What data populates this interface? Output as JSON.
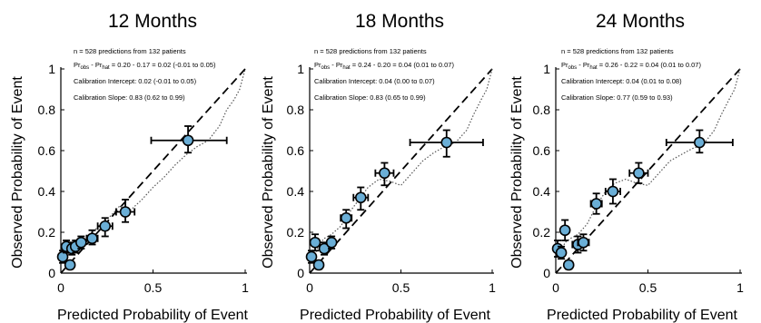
{
  "chart_data": [
    {
      "type": "scatter",
      "title": "12 Months",
      "xlabel": "Predicted Probability of Event",
      "ylabel": "Observed Probability of Event",
      "xlim": [
        0,
        1
      ],
      "ylim": [
        0,
        1
      ],
      "xticks": [
        "0",
        "0.5",
        "1"
      ],
      "yticks": [
        "0",
        "0.2",
        "0.4",
        "0.6",
        "0.8",
        "1"
      ],
      "annotations": {
        "n": "n = 528 predictions from 132 patients",
        "pr_lead": "Pr",
        "pr_obs_sub": "obs",
        "pr_mid": " - Pr",
        "pr_hat_sub": "hat",
        "pr_rest": " = 0.20 - 0.17 = 0.02 (-0.01 to 0.05)",
        "intercept": "Calibration Intercept: 0.02 (-0.01 to 0.05)",
        "slope": "Calibration Slope: 0.83 (0.62 to 0.99)"
      },
      "points": [
        {
          "x": 0.01,
          "y": 0.08,
          "y_lo": 0.05,
          "y_hi": 0.11,
          "x_lo": 0.0,
          "x_hi": 0.03
        },
        {
          "x": 0.03,
          "y": 0.13,
          "y_lo": 0.1,
          "y_hi": 0.16,
          "x_lo": 0.02,
          "x_hi": 0.05
        },
        {
          "x": 0.05,
          "y": 0.04,
          "y_lo": 0.02,
          "y_hi": 0.06,
          "x_lo": 0.04,
          "x_hi": 0.07
        },
        {
          "x": 0.06,
          "y": 0.12,
          "y_lo": 0.09,
          "y_hi": 0.15,
          "x_lo": 0.04,
          "x_hi": 0.08
        },
        {
          "x": 0.08,
          "y": 0.13,
          "y_lo": 0.1,
          "y_hi": 0.16,
          "x_lo": 0.06,
          "x_hi": 0.1
        },
        {
          "x": 0.11,
          "y": 0.15,
          "y_lo": 0.12,
          "y_hi": 0.18,
          "x_lo": 0.09,
          "x_hi": 0.13
        },
        {
          "x": 0.17,
          "y": 0.17,
          "y_lo": 0.14,
          "y_hi": 0.21,
          "x_lo": 0.14,
          "x_hi": 0.2
        },
        {
          "x": 0.24,
          "y": 0.23,
          "y_lo": 0.18,
          "y_hi": 0.27,
          "x_lo": 0.2,
          "x_hi": 0.28
        },
        {
          "x": 0.35,
          "y": 0.3,
          "y_lo": 0.25,
          "y_hi": 0.36,
          "x_lo": 0.3,
          "x_hi": 0.4
        },
        {
          "x": 0.69,
          "y": 0.65,
          "y_lo": 0.59,
          "y_hi": 0.72,
          "x_lo": 0.49,
          "x_hi": 0.9
        }
      ],
      "smooth_curve": {
        "x": [
          0.02,
          0.05,
          0.08,
          0.12,
          0.17,
          0.22,
          0.27,
          0.32,
          0.38,
          0.44,
          0.5,
          0.56,
          0.62,
          0.68,
          0.74,
          0.8,
          0.86,
          0.9,
          0.94,
          0.97,
          1.0
        ],
        "y": [
          0.05,
          0.12,
          0.13,
          0.16,
          0.2,
          0.24,
          0.28,
          0.33,
          0.31,
          0.36,
          0.42,
          0.47,
          0.53,
          0.58,
          0.62,
          0.65,
          0.72,
          0.8,
          0.85,
          0.9,
          1.0
        ]
      }
    },
    {
      "type": "scatter",
      "title": "18 Months",
      "xlabel": "Predicted Probability of Event",
      "ylabel": "Observed Probability of Event",
      "xlim": [
        0,
        1
      ],
      "ylim": [
        0,
        1
      ],
      "xticks": [
        "0",
        "0.5",
        "1"
      ],
      "yticks": [
        "0",
        "0.2",
        "0.4",
        "0.6",
        "0.8",
        "1"
      ],
      "annotations": {
        "n": "n = 528 predictions from 132 patients",
        "pr_lead": "Pr",
        "pr_obs_sub": "obs",
        "pr_mid": " - Pr",
        "pr_hat_sub": "hat",
        "pr_rest": " = 0.24 - 0.20 = 0.04 (0.01 to 0.07)",
        "intercept": "Calibration Intercept: 0.04 (0.00 to 0.07)",
        "slope": "Calibration Slope: 0.83 (0.65 to 0.99)"
      },
      "points": [
        {
          "x": 0.01,
          "y": 0.08,
          "y_lo": 0.05,
          "y_hi": 0.11,
          "x_lo": 0.0,
          "x_hi": 0.03
        },
        {
          "x": 0.03,
          "y": 0.15,
          "y_lo": 0.11,
          "y_hi": 0.19,
          "x_lo": 0.01,
          "x_hi": 0.05
        },
        {
          "x": 0.05,
          "y": 0.04,
          "y_lo": 0.02,
          "y_hi": 0.06,
          "x_lo": 0.04,
          "x_hi": 0.07
        },
        {
          "x": 0.08,
          "y": 0.12,
          "y_lo": 0.09,
          "y_hi": 0.15,
          "x_lo": 0.06,
          "x_hi": 0.1
        },
        {
          "x": 0.12,
          "y": 0.15,
          "y_lo": 0.12,
          "y_hi": 0.18,
          "x_lo": 0.1,
          "x_hi": 0.14
        },
        {
          "x": 0.2,
          "y": 0.27,
          "y_lo": 0.22,
          "y_hi": 0.31,
          "x_lo": 0.17,
          "x_hi": 0.23
        },
        {
          "x": 0.28,
          "y": 0.37,
          "y_lo": 0.31,
          "y_hi": 0.42,
          "x_lo": 0.24,
          "x_hi": 0.32
        },
        {
          "x": 0.41,
          "y": 0.49,
          "y_lo": 0.43,
          "y_hi": 0.54,
          "x_lo": 0.36,
          "x_hi": 0.46
        },
        {
          "x": 0.75,
          "y": 0.64,
          "y_lo": 0.57,
          "y_hi": 0.7,
          "x_lo": 0.55,
          "x_hi": 0.95
        }
      ],
      "smooth_curve": {
        "x": [
          0.02,
          0.05,
          0.08,
          0.12,
          0.17,
          0.22,
          0.27,
          0.32,
          0.38,
          0.44,
          0.5,
          0.56,
          0.62,
          0.68,
          0.74,
          0.8,
          0.86,
          0.9,
          0.94,
          0.97,
          1.0
        ],
        "y": [
          0.06,
          0.14,
          0.17,
          0.19,
          0.23,
          0.3,
          0.36,
          0.42,
          0.46,
          0.45,
          0.43,
          0.49,
          0.55,
          0.59,
          0.62,
          0.64,
          0.7,
          0.78,
          0.85,
          0.9,
          1.0
        ]
      }
    },
    {
      "type": "scatter",
      "title": "24 Months",
      "xlabel": "Predicted Probability of Event",
      "ylabel": "Observed Probability of Event",
      "xlim": [
        0,
        1
      ],
      "ylim": [
        0,
        1
      ],
      "xticks": [
        "0",
        "0.5",
        "1"
      ],
      "yticks": [
        "0",
        "0.2",
        "0.4",
        "0.6",
        "0.8",
        "1"
      ],
      "annotations": {
        "n": "n = 528 predictions from 132 patients",
        "pr_lead": "Pr",
        "pr_obs_sub": "obs",
        "pr_mid": " - Pr",
        "pr_hat_sub": "hat",
        "pr_rest": " = 0.26 - 0.22 = 0.04 (0.01 to 0.07)",
        "intercept": "Calibration Intercept: 0.04 (0.01 to 0.08)",
        "slope": "Calibration Slope: 0.77 (0.59 to 0.93)"
      },
      "points": [
        {
          "x": 0.01,
          "y": 0.12,
          "y_lo": 0.08,
          "y_hi": 0.16,
          "x_lo": 0.0,
          "x_hi": 0.03
        },
        {
          "x": 0.03,
          "y": 0.1,
          "y_lo": 0.07,
          "y_hi": 0.13,
          "x_lo": 0.01,
          "x_hi": 0.05
        },
        {
          "x": 0.05,
          "y": 0.21,
          "y_lo": 0.16,
          "y_hi": 0.26,
          "x_lo": 0.03,
          "x_hi": 0.07
        },
        {
          "x": 0.07,
          "y": 0.04,
          "y_lo": 0.02,
          "y_hi": 0.06,
          "x_lo": 0.05,
          "x_hi": 0.09
        },
        {
          "x": 0.12,
          "y": 0.14,
          "y_lo": 0.1,
          "y_hi": 0.18,
          "x_lo": 0.09,
          "x_hi": 0.15
        },
        {
          "x": 0.15,
          "y": 0.15,
          "y_lo": 0.11,
          "y_hi": 0.19,
          "x_lo": 0.12,
          "x_hi": 0.18
        },
        {
          "x": 0.22,
          "y": 0.34,
          "y_lo": 0.29,
          "y_hi": 0.39,
          "x_lo": 0.19,
          "x_hi": 0.25
        },
        {
          "x": 0.31,
          "y": 0.4,
          "y_lo": 0.34,
          "y_hi": 0.46,
          "x_lo": 0.27,
          "x_hi": 0.35
        },
        {
          "x": 0.45,
          "y": 0.49,
          "y_lo": 0.44,
          "y_hi": 0.54,
          "x_lo": 0.4,
          "x_hi": 0.5
        },
        {
          "x": 0.78,
          "y": 0.64,
          "y_lo": 0.59,
          "y_hi": 0.7,
          "x_lo": 0.6,
          "x_hi": 0.96
        }
      ],
      "smooth_curve": {
        "x": [
          0.02,
          0.05,
          0.08,
          0.12,
          0.17,
          0.22,
          0.27,
          0.32,
          0.38,
          0.44,
          0.5,
          0.56,
          0.62,
          0.68,
          0.74,
          0.8,
          0.86,
          0.9,
          0.94,
          0.97,
          1.0
        ],
        "y": [
          0.08,
          0.15,
          0.17,
          0.19,
          0.24,
          0.33,
          0.4,
          0.44,
          0.46,
          0.44,
          0.43,
          0.49,
          0.55,
          0.58,
          0.61,
          0.63,
          0.7,
          0.78,
          0.85,
          0.9,
          1.0
        ]
      }
    }
  ]
}
